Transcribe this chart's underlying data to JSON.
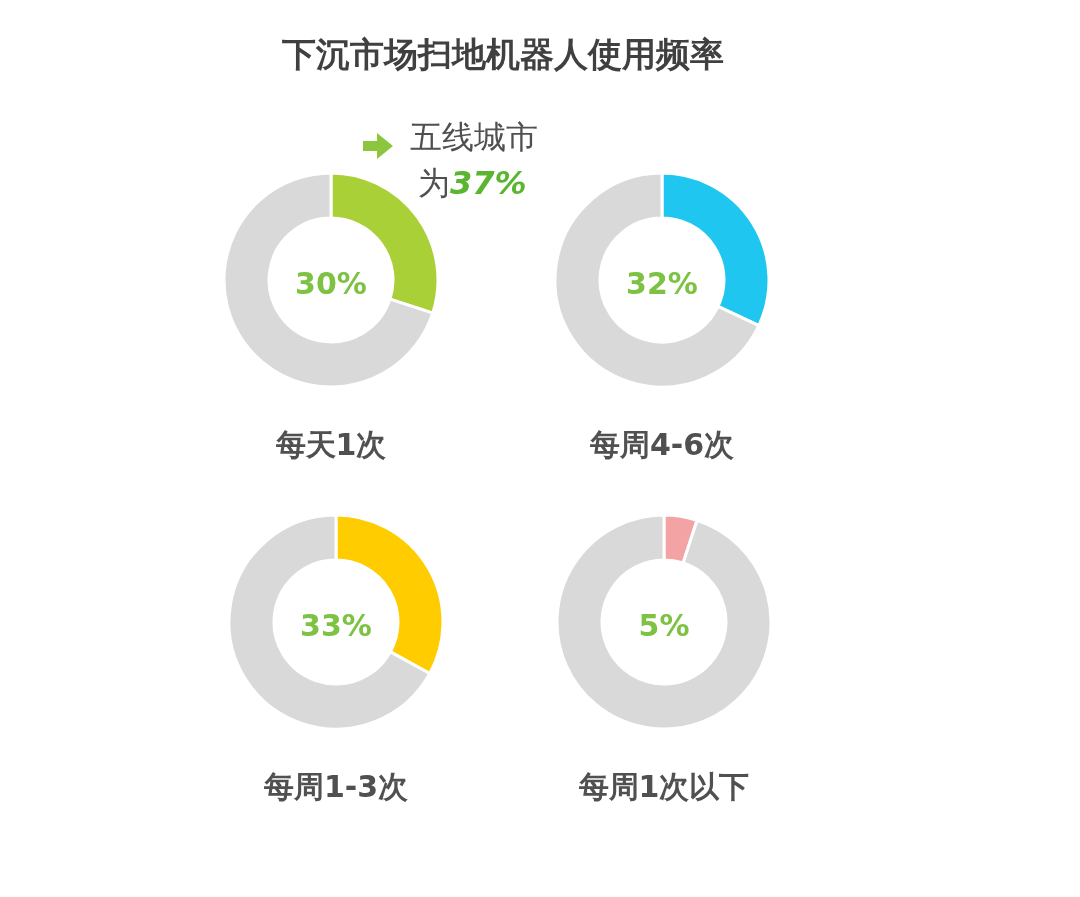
{
  "chart_data": [
    {
      "type": "donut",
      "title": "下沉市场扫地机器人使用频率",
      "xlabel": "每天1次",
      "categories": [
        null,
        null
      ],
      "values": [
        30,
        70
      ],
      "colors": [
        "#a9d036",
        "#d9d9d9"
      ],
      "annotations": [
        "30%",
        "五线城市",
        "为37%"
      ]
    },
    {
      "type": "donut",
      "xlabel": "每周4-6次",
      "categories": [
        null,
        null
      ],
      "values": [
        32,
        68
      ],
      "colors": [
        "#1fc7f0",
        "#d9d9d9"
      ],
      "annotations": [
        "32%"
      ]
    },
    {
      "type": "donut",
      "xlabel": "每周1-3次",
      "categories": [
        null,
        null
      ],
      "values": [
        33,
        67
      ],
      "colors": [
        "#ffcc00",
        "#d9d9d9"
      ],
      "annotations": [
        "33%"
      ]
    },
    {
      "type": "donut",
      "xlabel": "每周1次以下",
      "categories": [
        null,
        null
      ],
      "values": [
        5,
        95
      ],
      "colors": [
        "#f4a3a5",
        "#d9d9d9"
      ],
      "annotations": [
        "5%"
      ]
    }
  ]
}
